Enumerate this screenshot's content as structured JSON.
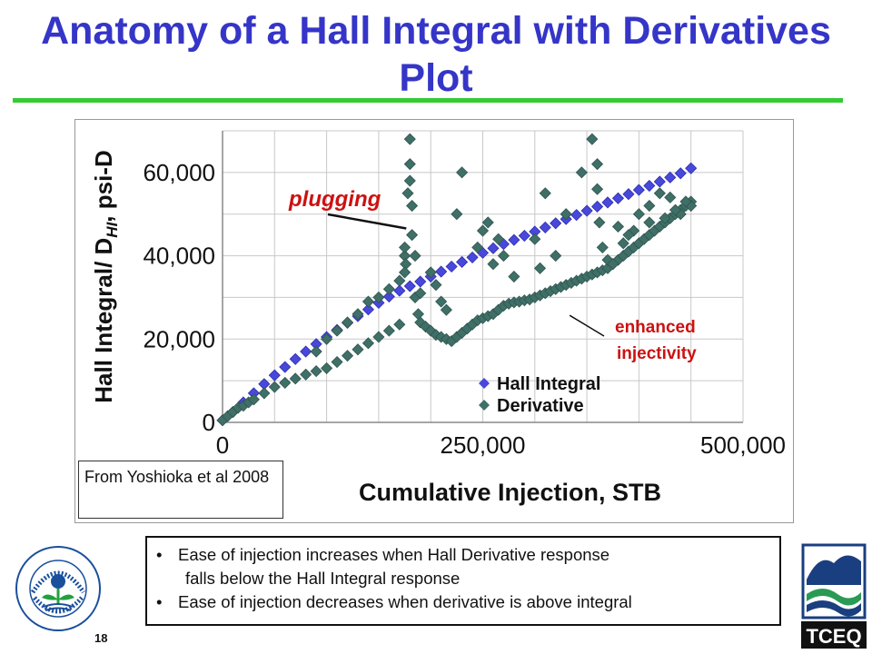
{
  "title": "Anatomy of a Hall Integral with Derivatives Plot",
  "source_note": "From Yoshioka et al 2008",
  "bullets": {
    "item1_line1": "Ease of injection increases when Hall Derivative response",
    "item1_line2": "falls below the Hall Integral response",
    "item2": "Ease of injection decreases when derivative is above integral",
    "marker": "•"
  },
  "page_number": "18",
  "logos": {
    "epa_text": "UNITED STATES ENVIRONMENTAL PROTECTION AGENCY",
    "tceq_text": "TCEQ"
  },
  "colors": {
    "title": "#3535c8",
    "rule": "#33cc33",
    "hall_integral": "#4848dd",
    "derivative": "#3f6f66",
    "annotation": "#cc1111",
    "gridline": "#c8c8c8"
  },
  "chart_data": {
    "type": "scatter",
    "xlabel": "Cumulative Injection, STB",
    "ylabel": "Hall Integral/ D",
    "ylabel_sub": "HI",
    "ylabel_tail": ", psi-D",
    "xlim": [
      0,
      500000
    ],
    "ylim": [
      0,
      70000
    ],
    "x_ticks": [
      0,
      250000,
      500000
    ],
    "x_tick_labels": [
      "0",
      "250,000",
      "500,000"
    ],
    "y_ticks": [
      0,
      20000,
      40000,
      60000
    ],
    "y_tick_labels": [
      "0",
      "20,000",
      "40,000",
      "60,000"
    ],
    "grid": true,
    "legend_position": "bottom-right",
    "annotations": [
      {
        "text": "plugging",
        "points_to": [
          180000,
          47000
        ]
      },
      {
        "text": "enhanced",
        "text2": "injectivity",
        "points_to": [
          330000,
          27000
        ]
      }
    ],
    "series": [
      {
        "name": "Hall Integral",
        "x": [
          0,
          10000,
          20000,
          30000,
          40000,
          50000,
          60000,
          70000,
          80000,
          90000,
          100000,
          110000,
          120000,
          130000,
          140000,
          150000,
          160000,
          170000,
          180000,
          190000,
          200000,
          210000,
          220000,
          230000,
          240000,
          250000,
          260000,
          270000,
          280000,
          290000,
          300000,
          310000,
          320000,
          330000,
          340000,
          350000,
          360000,
          370000,
          380000,
          390000,
          400000,
          410000,
          420000,
          430000,
          440000,
          450000
        ],
        "y": [
          500,
          2500,
          4800,
          7000,
          9200,
          11300,
          13300,
          15200,
          17000,
          18800,
          20500,
          22200,
          23900,
          25500,
          27100,
          28700,
          30200,
          31600,
          32700,
          33800,
          35000,
          36200,
          37400,
          38500,
          39600,
          40700,
          41800,
          42800,
          43800,
          44800,
          45800,
          46800,
          47800,
          48800,
          49800,
          50800,
          51800,
          52800,
          53800,
          54800,
          55800,
          56800,
          57800,
          58800,
          59800,
          61000
        ]
      },
      {
        "name": "Derivative",
        "x": [
          0,
          5000,
          10000,
          15000,
          20000,
          25000,
          30000,
          40000,
          50000,
          60000,
          70000,
          80000,
          90000,
          100000,
          110000,
          120000,
          130000,
          140000,
          150000,
          160000,
          170000,
          175000,
          178000,
          180000,
          182000,
          185000,
          188000,
          190000,
          195000,
          200000,
          205000,
          210000,
          215000,
          220000,
          225000,
          230000,
          235000,
          240000,
          245000,
          250000,
          255000,
          260000,
          265000,
          270000,
          275000,
          280000,
          285000,
          290000,
          295000,
          300000,
          305000,
          310000,
          315000,
          320000,
          325000,
          330000,
          335000,
          340000,
          345000,
          350000,
          355000,
          360000,
          365000,
          370000,
          375000,
          380000,
          385000,
          390000,
          395000,
          400000,
          405000,
          410000,
          415000,
          420000,
          425000,
          430000,
          435000,
          440000,
          445000,
          450000,
          180000,
          180000,
          182000,
          175000,
          176000,
          200000,
          205000,
          210000,
          215000,
          185000,
          190000,
          225000,
          230000,
          245000,
          250000,
          255000,
          260000,
          265000,
          270000,
          280000,
          300000,
          305000,
          310000,
          320000,
          330000,
          345000,
          355000,
          360000,
          360000,
          362000,
          365000,
          370000,
          375000,
          380000,
          385000,
          395000,
          400000,
          410000,
          420000,
          430000,
          440000,
          450000,
          100000,
          110000,
          120000,
          130000,
          140000,
          90000,
          150000,
          160000,
          170000,
          175000,
          390000,
          410000,
          425000,
          435000,
          445000
        ],
        "y": [
          500,
          1500,
          2500,
          3500,
          4000,
          4800,
          5500,
          7000,
          8500,
          9500,
          10500,
          11500,
          12300,
          13000,
          14500,
          16000,
          17500,
          19000,
          20500,
          22000,
          23500,
          40000,
          55000,
          68000,
          52000,
          30000,
          26000,
          24000,
          23000,
          22000,
          21000,
          20500,
          20000,
          19500,
          20500,
          21500,
          22500,
          23500,
          24500,
          25000,
          25500,
          26000,
          27000,
          28000,
          28500,
          28800,
          29000,
          29300,
          29500,
          30000,
          30500,
          31000,
          31500,
          32000,
          32500,
          33000,
          33500,
          34000,
          34500,
          35000,
          35500,
          36000,
          36500,
          37000,
          38000,
          39000,
          40000,
          41000,
          42000,
          43000,
          44000,
          45000,
          46000,
          47000,
          48000,
          49000,
          50000,
          51000,
          52000,
          53000,
          62000,
          58000,
          45000,
          42000,
          38000,
          36000,
          33000,
          29000,
          27000,
          40000,
          31000,
          50000,
          60000,
          42000,
          46000,
          48000,
          38000,
          44000,
          40000,
          35000,
          44000,
          37000,
          55000,
          40000,
          50000,
          60000,
          68000,
          62000,
          56000,
          48000,
          42000,
          39000,
          38000,
          47000,
          43000,
          46000,
          50000,
          52000,
          55000,
          54000,
          50000,
          52000,
          20000,
          22000,
          24000,
          26000,
          29000,
          17000,
          30000,
          32000,
          34000,
          36000,
          45000,
          48000,
          49000,
          51000,
          53000
        ]
      }
    ]
  }
}
